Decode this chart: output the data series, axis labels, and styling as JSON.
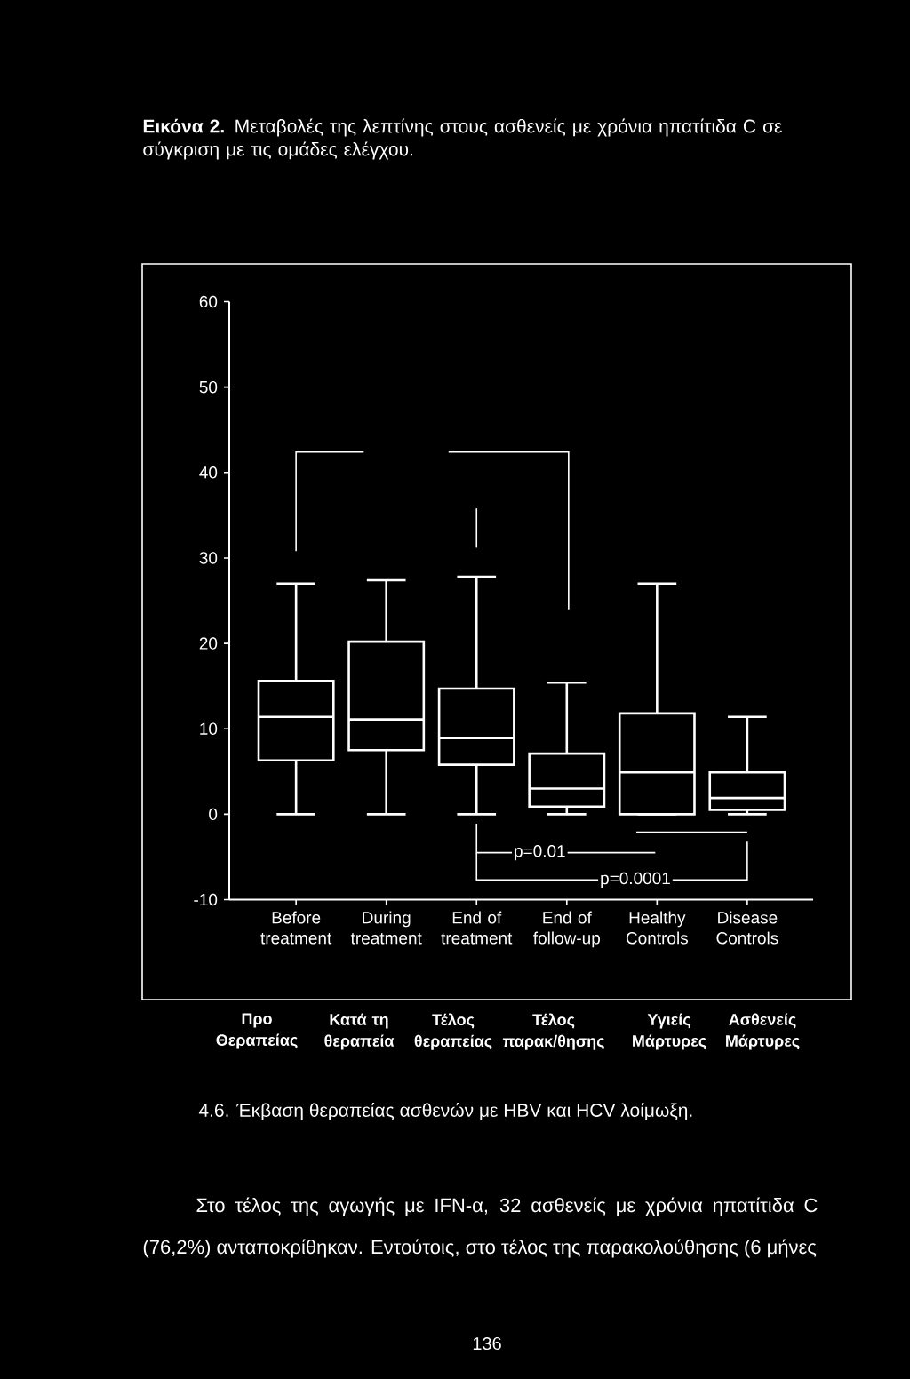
{
  "chart_data": {
    "type": "box",
    "title": "**Εικόνα 2.** Μεταβολές της λεπτίνης στους ασθενείς με χρόνια ηπατίτιδα C σε σύγκριση με τις ομάδες ελέγχου.",
    "categories": [
      "Before treatment",
      "During treatment",
      "End of treatment",
      "End of follow-up",
      "Healthy Controls",
      "Disease Controls"
    ],
    "series": [
      {
        "color": "#ffffff",
        "boxes": [
          {
            "low": 0,
            "q1": 6.3,
            "median": 11.4,
            "q3": 15.6,
            "high": 27
          },
          {
            "low": 0,
            "q1": 7.5,
            "median": 11.1,
            "q3": 20.2,
            "high": 27.4
          },
          {
            "low": 0,
            "q1": 5.8,
            "median": 8.9,
            "q3": 14.7,
            "high": 27.8
          },
          {
            "low": 0,
            "q1": 0.9,
            "median": 3,
            "q3": 7.1,
            "high": 15.4
          },
          {
            "low": 0,
            "q1": 0,
            "median": 4.9,
            "q3": 11.8,
            "high": 27
          },
          {
            "low": 0,
            "q1": 0.5,
            "median": 1.9,
            "q3": 4.9,
            "high": 11.4
          }
        ]
      }
    ],
    "ylim": [
      -10,
      60
    ],
    "yticks": [
      -10,
      0,
      10,
      20,
      30,
      40,
      50,
      60
    ],
    "annotations": [
      "p=0.01",
      "p=0.0001",
      "Προ Θεραπείας",
      "Κατά τη θεραπεία",
      "Τέλος θεραπείας",
      "Τέλος παρακ/θησης",
      "Υγιείς Μάρτυρες",
      "Ασθενείς Μάρτυρες",
      "4.6. Έκβαση θεραπείας ασθενών με HBV και HCV λοίμωξη.",
      "Στο τέλος της αγωγής με IFN-α, 32 ασθενείς με χρόνια ηπατίτιδα C (76,2%) ανταποκρίθηκαν. Εντούτοις, στο τέλος της παρακολούθησης (6 μήνες",
      "136"
    ]
  }
}
